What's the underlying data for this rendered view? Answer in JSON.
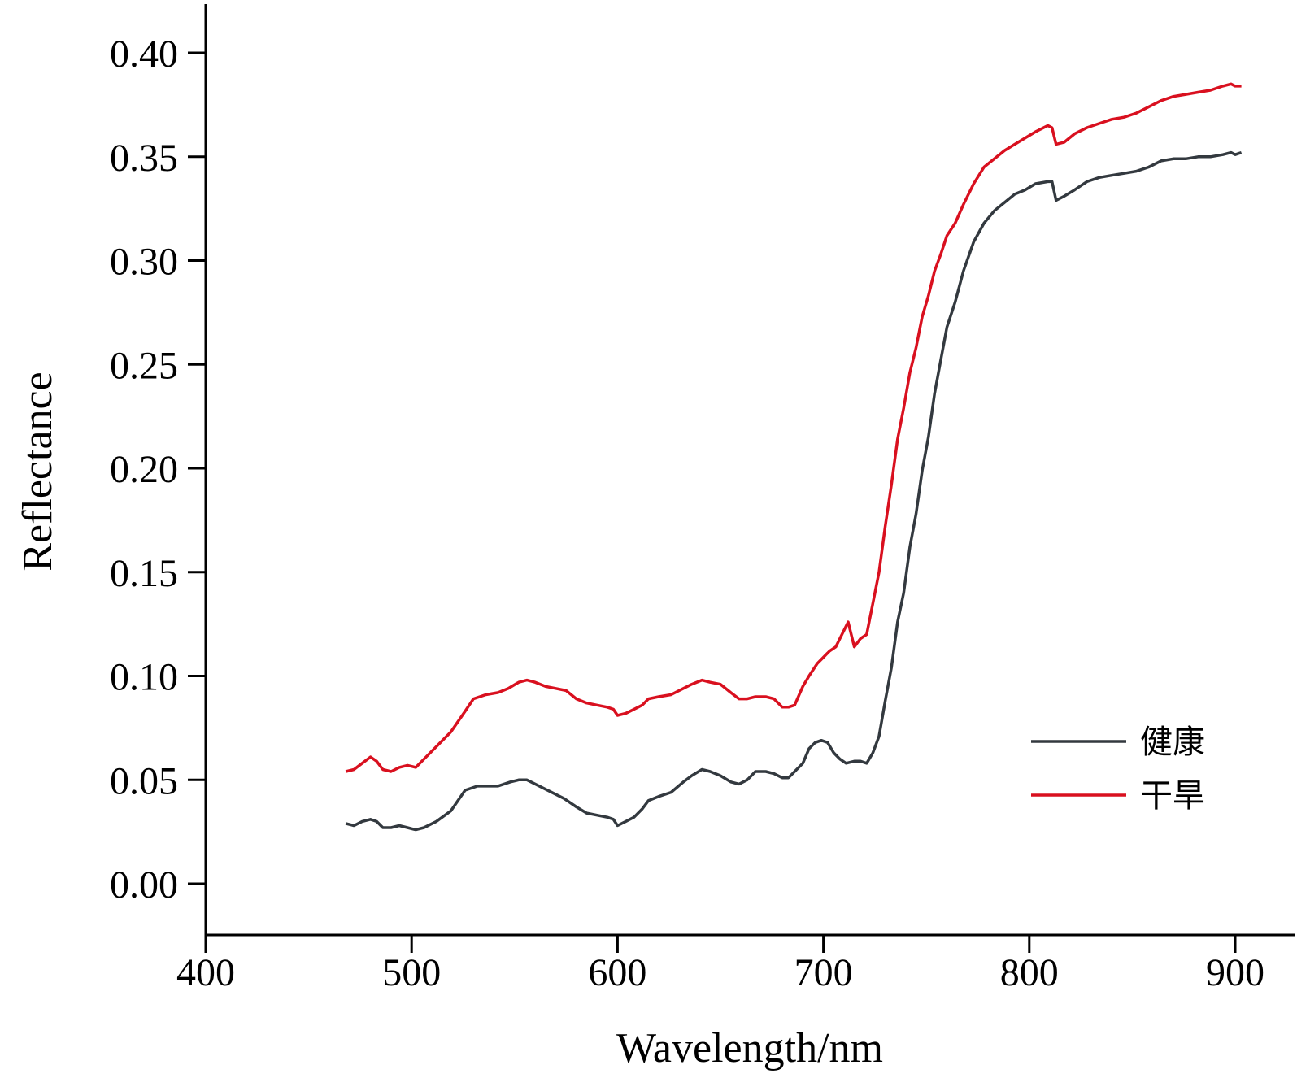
{
  "chart_data": {
    "type": "line",
    "xlabel": "Wavelength/nm",
    "ylabel": "Reflectance",
    "xlim": [
      400,
      910
    ],
    "ylim": [
      -0.025,
      0.425
    ],
    "xticks": [
      400,
      500,
      600,
      700,
      800,
      900
    ],
    "xtick_labels": [
      "400",
      "500",
      "600",
      "700",
      "800",
      "900"
    ],
    "yticks": [
      0.0,
      0.05,
      0.1,
      0.15,
      0.2,
      0.25,
      0.3,
      0.35,
      0.4
    ],
    "ytick_labels": [
      "0.00",
      "0.05",
      "0.10",
      "0.15",
      "0.20",
      "0.25",
      "0.30",
      "0.35",
      "0.40"
    ],
    "grid": false,
    "legend_position": "bottom-right",
    "series": [
      {
        "name": "健康",
        "color": "#33393f",
        "points": [
          [
            468,
            0.029
          ],
          [
            472,
            0.028
          ],
          [
            476,
            0.03
          ],
          [
            480,
            0.031
          ],
          [
            483,
            0.03
          ],
          [
            486,
            0.027
          ],
          [
            490,
            0.027
          ],
          [
            494,
            0.028
          ],
          [
            498,
            0.027
          ],
          [
            502,
            0.026
          ],
          [
            506,
            0.027
          ],
          [
            512,
            0.03
          ],
          [
            519,
            0.035
          ],
          [
            526,
            0.045
          ],
          [
            532,
            0.047
          ],
          [
            537,
            0.047
          ],
          [
            542,
            0.047
          ],
          [
            548,
            0.049
          ],
          [
            552,
            0.05
          ],
          [
            556,
            0.05
          ],
          [
            562,
            0.047
          ],
          [
            568,
            0.044
          ],
          [
            574,
            0.041
          ],
          [
            580,
            0.037
          ],
          [
            585,
            0.034
          ],
          [
            590,
            0.033
          ],
          [
            595,
            0.032
          ],
          [
            598,
            0.031
          ],
          [
            600,
            0.028
          ],
          [
            604,
            0.03
          ],
          [
            608,
            0.032
          ],
          [
            612,
            0.036
          ],
          [
            615,
            0.04
          ],
          [
            620,
            0.042
          ],
          [
            626,
            0.044
          ],
          [
            632,
            0.049
          ],
          [
            636,
            0.052
          ],
          [
            641,
            0.055
          ],
          [
            645,
            0.054
          ],
          [
            650,
            0.052
          ],
          [
            655,
            0.049
          ],
          [
            659,
            0.048
          ],
          [
            663,
            0.05
          ],
          [
            667,
            0.054
          ],
          [
            672,
            0.054
          ],
          [
            676,
            0.053
          ],
          [
            680,
            0.051
          ],
          [
            683,
            0.051
          ],
          [
            686,
            0.054
          ],
          [
            690,
            0.058
          ],
          [
            693,
            0.065
          ],
          [
            696,
            0.068
          ],
          [
            699,
            0.069
          ],
          [
            702,
            0.068
          ],
          [
            705,
            0.063
          ],
          [
            708,
            0.06
          ],
          [
            711,
            0.058
          ],
          [
            715,
            0.059
          ],
          [
            718,
            0.059
          ],
          [
            721,
            0.058
          ],
          [
            724,
            0.063
          ],
          [
            727,
            0.071
          ],
          [
            730,
            0.088
          ],
          [
            733,
            0.104
          ],
          [
            736,
            0.126
          ],
          [
            739,
            0.14
          ],
          [
            742,
            0.162
          ],
          [
            745,
            0.178
          ],
          [
            748,
            0.199
          ],
          [
            751,
            0.215
          ],
          [
            754,
            0.236
          ],
          [
            757,
            0.252
          ],
          [
            760,
            0.268
          ],
          [
            764,
            0.28
          ],
          [
            768,
            0.295
          ],
          [
            773,
            0.309
          ],
          [
            778,
            0.318
          ],
          [
            783,
            0.324
          ],
          [
            788,
            0.328
          ],
          [
            793,
            0.332
          ],
          [
            798,
            0.334
          ],
          [
            803,
            0.337
          ],
          [
            809,
            0.338
          ],
          [
            811,
            0.338
          ],
          [
            813,
            0.329
          ],
          [
            817,
            0.331
          ],
          [
            822,
            0.334
          ],
          [
            828,
            0.338
          ],
          [
            834,
            0.34
          ],
          [
            840,
            0.341
          ],
          [
            846,
            0.342
          ],
          [
            852,
            0.343
          ],
          [
            858,
            0.345
          ],
          [
            864,
            0.348
          ],
          [
            870,
            0.349
          ],
          [
            876,
            0.349
          ],
          [
            882,
            0.35
          ],
          [
            888,
            0.35
          ],
          [
            894,
            0.351
          ],
          [
            898,
            0.352
          ],
          [
            900,
            0.351
          ],
          [
            903,
            0.352
          ]
        ]
      },
      {
        "name": "干旱",
        "color": "#d9101f",
        "points": [
          [
            468,
            0.054
          ],
          [
            472,
            0.055
          ],
          [
            476,
            0.058
          ],
          [
            480,
            0.061
          ],
          [
            483,
            0.059
          ],
          [
            486,
            0.055
          ],
          [
            490,
            0.054
          ],
          [
            494,
            0.056
          ],
          [
            498,
            0.057
          ],
          [
            502,
            0.056
          ],
          [
            506,
            0.06
          ],
          [
            512,
            0.066
          ],
          [
            519,
            0.073
          ],
          [
            526,
            0.083
          ],
          [
            530,
            0.089
          ],
          [
            536,
            0.091
          ],
          [
            542,
            0.092
          ],
          [
            547,
            0.094
          ],
          [
            552,
            0.097
          ],
          [
            556,
            0.098
          ],
          [
            560,
            0.097
          ],
          [
            565,
            0.095
          ],
          [
            570,
            0.094
          ],
          [
            575,
            0.093
          ],
          [
            580,
            0.089
          ],
          [
            585,
            0.087
          ],
          [
            590,
            0.086
          ],
          [
            595,
            0.085
          ],
          [
            598,
            0.084
          ],
          [
            600,
            0.081
          ],
          [
            604,
            0.082
          ],
          [
            608,
            0.084
          ],
          [
            612,
            0.086
          ],
          [
            615,
            0.089
          ],
          [
            620,
            0.09
          ],
          [
            626,
            0.091
          ],
          [
            632,
            0.094
          ],
          [
            636,
            0.096
          ],
          [
            641,
            0.098
          ],
          [
            645,
            0.097
          ],
          [
            650,
            0.096
          ],
          [
            655,
            0.092
          ],
          [
            659,
            0.089
          ],
          [
            663,
            0.089
          ],
          [
            667,
            0.09
          ],
          [
            672,
            0.09
          ],
          [
            676,
            0.089
          ],
          [
            680,
            0.085
          ],
          [
            683,
            0.085
          ],
          [
            686,
            0.086
          ],
          [
            690,
            0.095
          ],
          [
            693,
            0.1
          ],
          [
            697,
            0.106
          ],
          [
            700,
            0.109
          ],
          [
            703,
            0.112
          ],
          [
            706,
            0.114
          ],
          [
            709,
            0.12
          ],
          [
            712,
            0.126
          ],
          [
            715,
            0.114
          ],
          [
            718,
            0.118
          ],
          [
            721,
            0.12
          ],
          [
            724,
            0.135
          ],
          [
            727,
            0.15
          ],
          [
            730,
            0.172
          ],
          [
            733,
            0.192
          ],
          [
            736,
            0.214
          ],
          [
            739,
            0.229
          ],
          [
            742,
            0.246
          ],
          [
            745,
            0.258
          ],
          [
            748,
            0.273
          ],
          [
            751,
            0.283
          ],
          [
            754,
            0.295
          ],
          [
            757,
            0.303
          ],
          [
            760,
            0.312
          ],
          [
            764,
            0.318
          ],
          [
            768,
            0.327
          ],
          [
            773,
            0.337
          ],
          [
            778,
            0.345
          ],
          [
            783,
            0.349
          ],
          [
            788,
            0.353
          ],
          [
            793,
            0.356
          ],
          [
            798,
            0.359
          ],
          [
            803,
            0.362
          ],
          [
            809,
            0.365
          ],
          [
            811,
            0.364
          ],
          [
            813,
            0.356
          ],
          [
            817,
            0.357
          ],
          [
            822,
            0.361
          ],
          [
            828,
            0.364
          ],
          [
            834,
            0.366
          ],
          [
            840,
            0.368
          ],
          [
            846,
            0.369
          ],
          [
            852,
            0.371
          ],
          [
            858,
            0.374
          ],
          [
            864,
            0.377
          ],
          [
            870,
            0.379
          ],
          [
            876,
            0.38
          ],
          [
            882,
            0.381
          ],
          [
            888,
            0.382
          ],
          [
            894,
            0.384
          ],
          [
            898,
            0.385
          ],
          [
            900,
            0.384
          ],
          [
            903,
            0.384
          ]
        ]
      }
    ]
  }
}
